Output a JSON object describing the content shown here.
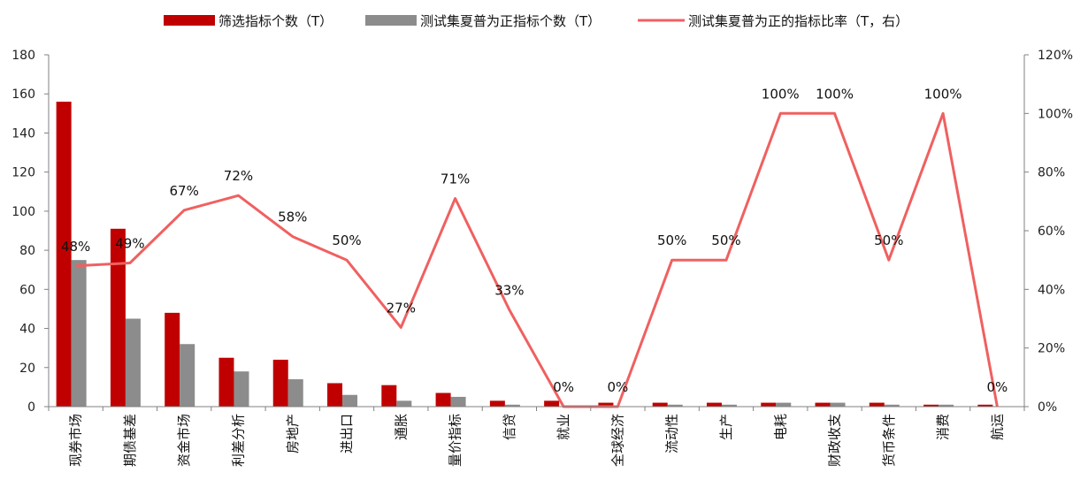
{
  "chart_data": {
    "type": "bar",
    "categories": [
      "现券市场",
      "期债基差",
      "资金市场",
      "利差分析",
      "房地产",
      "进出口",
      "通胀",
      "量价指标",
      "信贷",
      "就业",
      "全球经济",
      "流动性",
      "生产",
      "电耗",
      "财政收支",
      "货币条件",
      "消费",
      "航运"
    ],
    "series": [
      {
        "name": "筛选指标个数（T）",
        "type": "bar",
        "axis": "left",
        "color": "#C00000",
        "values": [
          156,
          91,
          48,
          25,
          24,
          12,
          11,
          7,
          3,
          3,
          2,
          2,
          2,
          2,
          2,
          2,
          1,
          1
        ]
      },
      {
        "name": "测试集夏普为正指标个数（T）",
        "type": "bar",
        "axis": "left",
        "color": "#8C8C8C",
        "values": [
          75,
          45,
          32,
          18,
          14,
          6,
          3,
          5,
          1,
          0,
          0,
          1,
          1,
          2,
          2,
          1,
          1,
          0
        ]
      },
      {
        "name": "测试集夏普为正的指标比率（T，右）",
        "type": "line",
        "axis": "right",
        "color": "#F06060",
        "values": [
          48,
          49,
          67,
          72,
          58,
          50,
          27,
          71,
          33,
          0,
          0,
          50,
          50,
          100,
          100,
          50,
          100,
          0
        ]
      }
    ],
    "data_labels": [
      "48%",
      "49%",
      "67%",
      "72%",
      "58%",
      "50%",
      "27%",
      "71%",
      "33%",
      "0%",
      "0%",
      "50%",
      "50%",
      "100%",
      "100%",
      "50%",
      "100%",
      "0%"
    ],
    "y_left": {
      "min": 0,
      "max": 180,
      "step": 20,
      "ticks": [
        "0",
        "20",
        "40",
        "60",
        "80",
        "100",
        "120",
        "140",
        "160",
        "180"
      ]
    },
    "y_right": {
      "min": 0,
      "max": 120,
      "step": 20,
      "ticks": [
        "0%",
        "20%",
        "40%",
        "60%",
        "80%",
        "100%",
        "120%"
      ]
    },
    "legend_position": "top",
    "grid": false
  }
}
